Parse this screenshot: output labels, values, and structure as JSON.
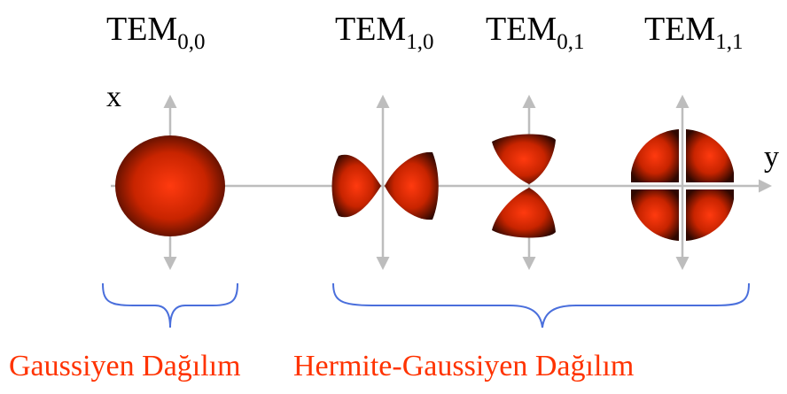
{
  "modes": [
    {
      "base": "TEM",
      "sub": "0,0"
    },
    {
      "base": "TEM",
      "sub": "1,0"
    },
    {
      "base": "TEM",
      "sub": "0,1"
    },
    {
      "base": "TEM",
      "sub": "1,1"
    }
  ],
  "axes": {
    "vertical": "x",
    "horizontal": "y"
  },
  "captions": {
    "gaussian": "Gaussiyen Dağılım",
    "hermite": "Hermite-Gaussiyen Dağılım"
  }
}
